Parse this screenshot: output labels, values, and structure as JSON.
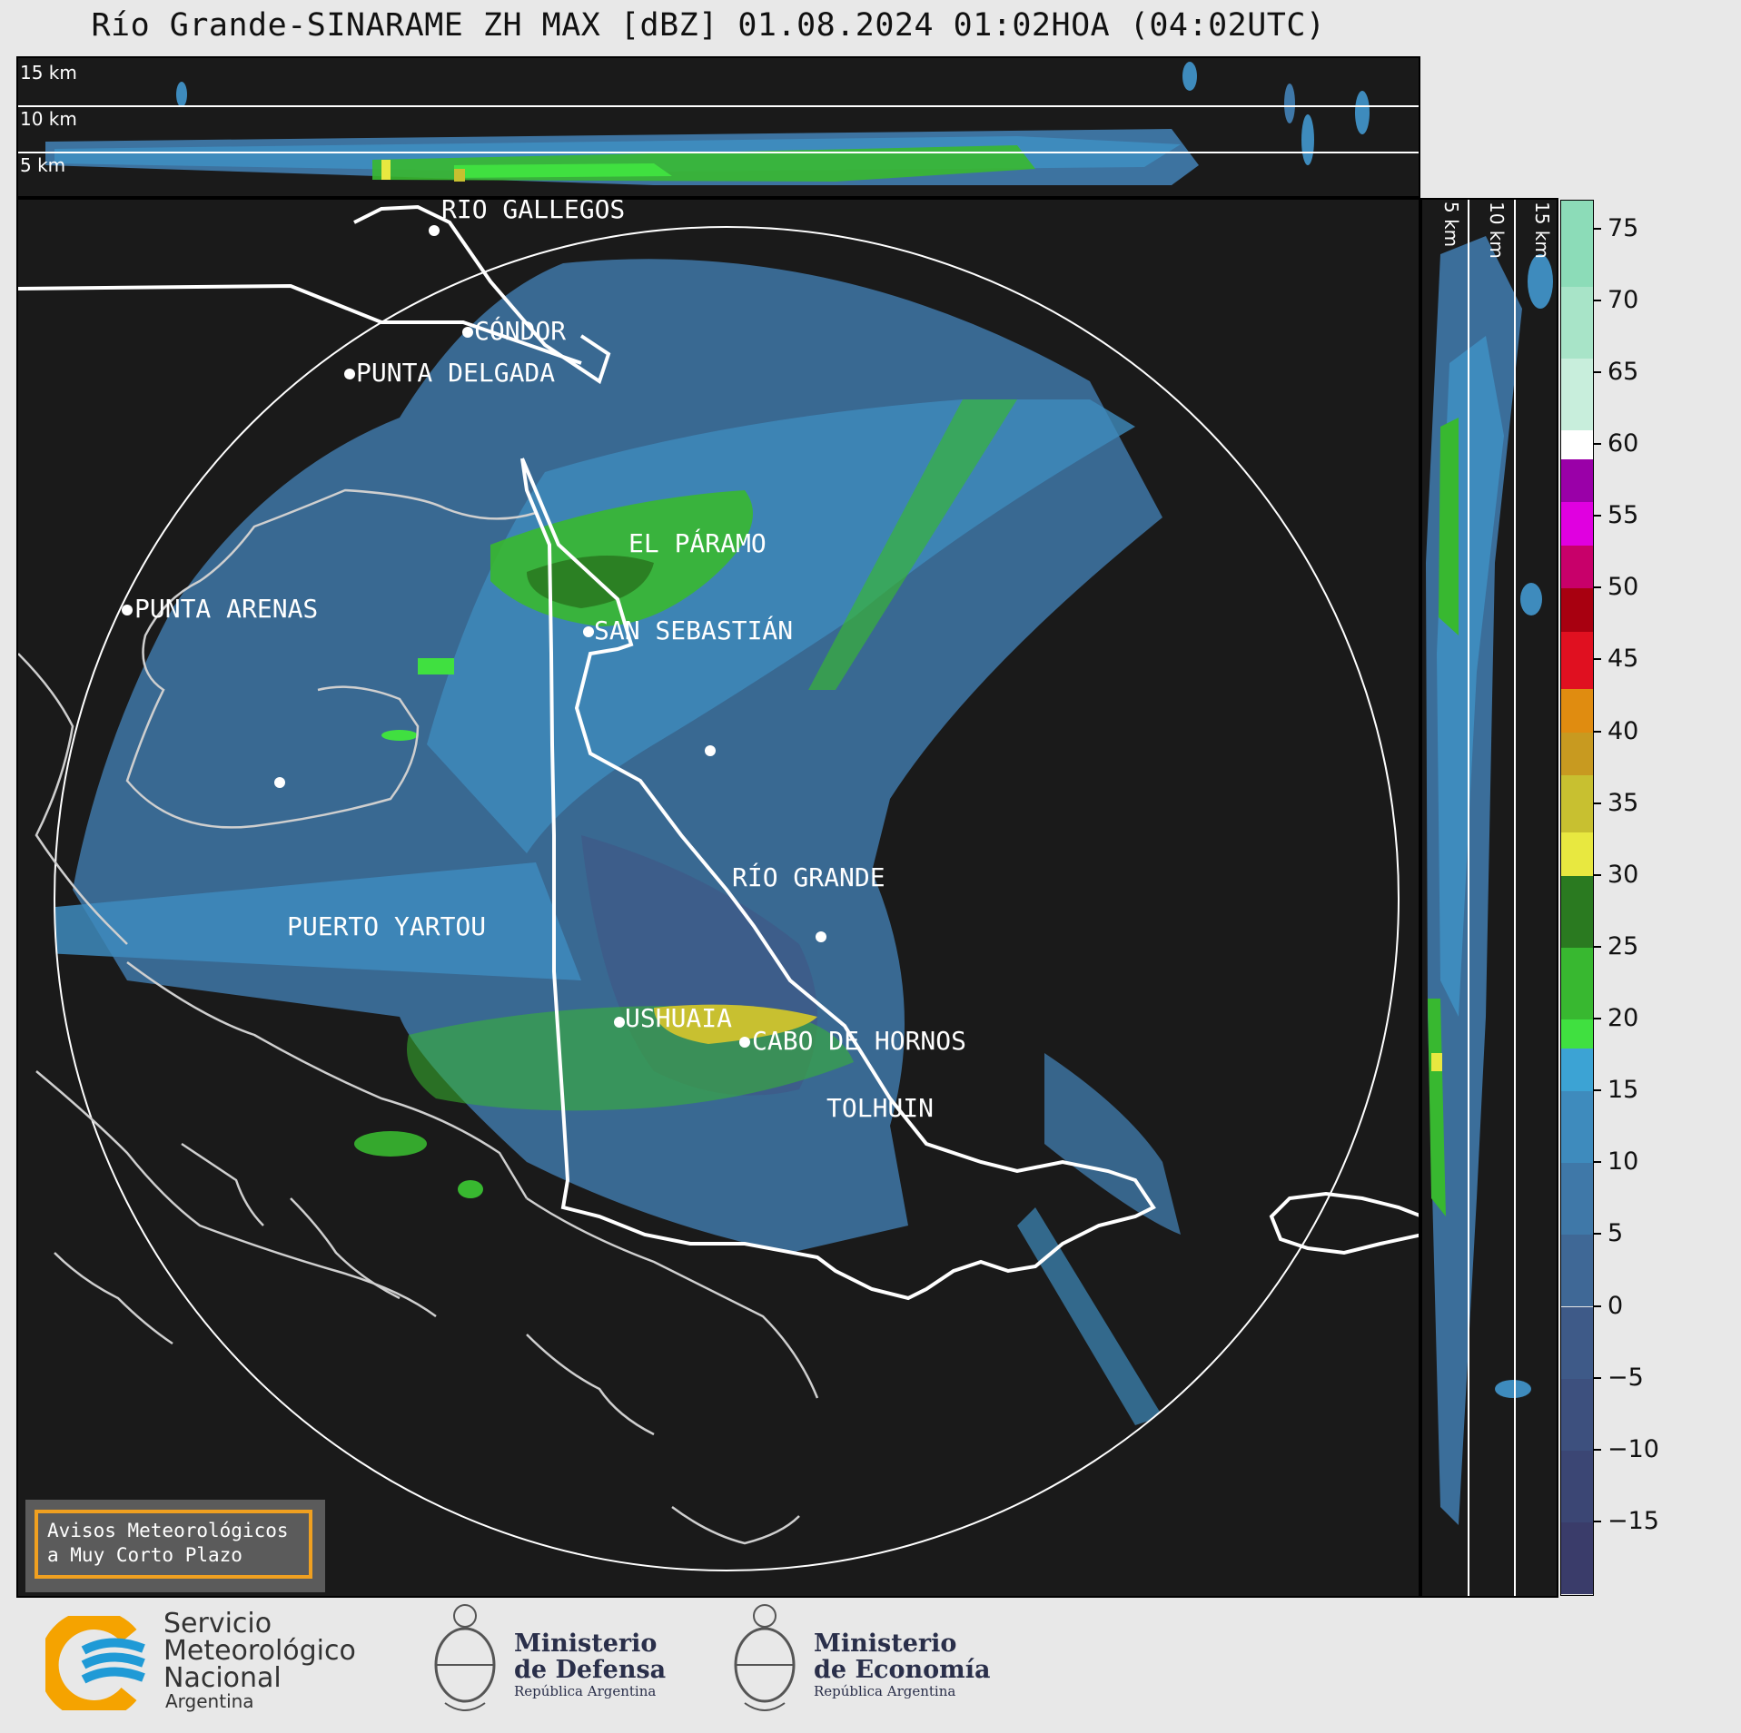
{
  "title": "Río Grande-SINARAME ZH MAX [dBZ] 01.08.2024 01:02HOA (04:02UTC)",
  "top_panel": {
    "height_labels": [
      "15 km",
      "10 km",
      "5 km"
    ]
  },
  "side_panel": {
    "height_labels": [
      "5 km",
      "10 km",
      "15 km"
    ]
  },
  "colorbar": {
    "unit": "dBZ",
    "min": -20,
    "max": 77,
    "tick_labels": [
      "75",
      "70",
      "65",
      "60",
      "55",
      "50",
      "45",
      "40",
      "35",
      "30",
      "25",
      "20",
      "15",
      "10",
      "5",
      "0",
      "−5",
      "−10",
      "−15"
    ],
    "tick_values": [
      75,
      70,
      65,
      60,
      55,
      50,
      45,
      40,
      35,
      30,
      25,
      20,
      15,
      10,
      5,
      0,
      -5,
      -10,
      -15
    ],
    "bands": [
      {
        "from": -20,
        "to": -15,
        "color": "#3a3c6a"
      },
      {
        "from": -15,
        "to": -10,
        "color": "#3b4674"
      },
      {
        "from": -10,
        "to": -5,
        "color": "#3d507e"
      },
      {
        "from": -5,
        "to": 0,
        "color": "#3e5a88"
      },
      {
        "from": 0,
        "to": 5,
        "color": "#3f6896"
      },
      {
        "from": 5,
        "to": 10,
        "color": "#3f78a8"
      },
      {
        "from": 10,
        "to": 15,
        "color": "#3e8bbd"
      },
      {
        "from": 15,
        "to": 18,
        "color": "#3ca3d4"
      },
      {
        "from": 18,
        "to": 20,
        "color": "#40e040"
      },
      {
        "from": 20,
        "to": 25,
        "color": "#38b830"
      },
      {
        "from": 25,
        "to": 30,
        "color": "#2a7a20"
      },
      {
        "from": 30,
        "to": 33,
        "color": "#e8e840"
      },
      {
        "from": 33,
        "to": 37,
        "color": "#c8c030"
      },
      {
        "from": 37,
        "to": 40,
        "color": "#c89a20"
      },
      {
        "from": 40,
        "to": 43,
        "color": "#e08c10"
      },
      {
        "from": 43,
        "to": 47,
        "color": "#e01020"
      },
      {
        "from": 47,
        "to": 50,
        "color": "#a80010"
      },
      {
        "from": 50,
        "to": 53,
        "color": "#c8006a"
      },
      {
        "from": 53,
        "to": 56,
        "color": "#e000e0"
      },
      {
        "from": 56,
        "to": 59,
        "color": "#9a00a8"
      },
      {
        "from": 59,
        "to": 61,
        "color": "#ffffff"
      },
      {
        "from": 61,
        "to": 66,
        "color": "#c8eedc"
      },
      {
        "from": 66,
        "to": 71,
        "color": "#a8e4c8"
      },
      {
        "from": 71,
        "to": 77,
        "color": "#8cdcb8"
      }
    ]
  },
  "cities": [
    {
      "name": "RÍO GALLEGOS"
    },
    {
      "name": "CÓNDOR"
    },
    {
      "name": "PUNTA DELGADA"
    },
    {
      "name": "EL PÁRAMO"
    },
    {
      "name": "PUNTA ARENAS"
    },
    {
      "name": "SAN SEBASTIÁN"
    },
    {
      "name": "RÍO GRANDE"
    },
    {
      "name": "PUERTO YARTOU"
    },
    {
      "name": "TOLHUIN"
    },
    {
      "name": "USHUAIA"
    },
    {
      "name": "CABO DE HORNOS"
    }
  ],
  "warning_box": {
    "line1": "Avisos Meteorológicos",
    "line2": "a Muy Corto Plazo"
  },
  "footer": {
    "smn": {
      "line1": "Servicio",
      "line2": "Meteorológico",
      "line3": "Nacional",
      "sub": "Argentina"
    },
    "defensa": {
      "line1": "Ministerio",
      "line2": "de Defensa",
      "sub": "República Argentina"
    },
    "economia": {
      "line1": "Ministerio",
      "line2": "de Economía",
      "sub": "República Argentina"
    }
  },
  "colors": {
    "background": "#e8e8e8",
    "panel": "#1a1a1a",
    "smn_orange": "#f5a300",
    "smn_blue": "#1f9ad6",
    "accent_box": "#f0a020"
  }
}
